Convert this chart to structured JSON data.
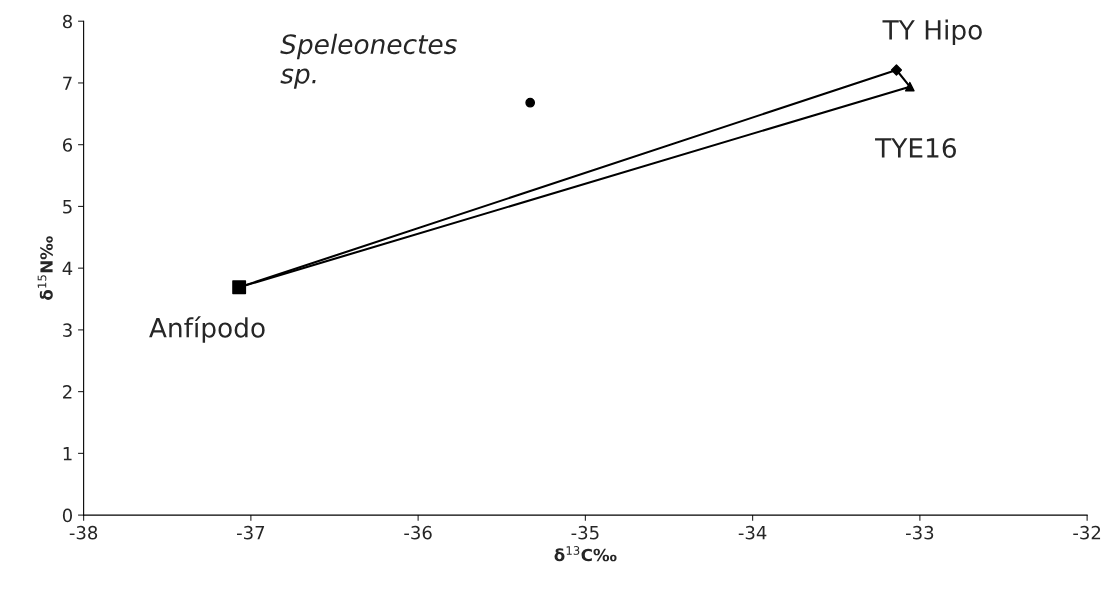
{
  "chart_data": {
    "type": "scatter",
    "xlabel": "δ$^{13}$C‰",
    "ylabel": "δ$^{15}$N‰",
    "xlim": [
      -38,
      -32
    ],
    "ylim": [
      0,
      8
    ],
    "xticks": [
      -38,
      -37,
      -36,
      -35,
      -34,
      -33,
      -32
    ],
    "yticks": [
      0,
      1,
      2,
      3,
      4,
      5,
      6,
      7,
      8
    ],
    "grid": false,
    "legend": false,
    "series": [
      {
        "type": "line",
        "color": "#000000",
        "marker": "none",
        "x": [
          -37.07,
          -33.14,
          -33.06
        ],
        "values": [
          3.69,
          7.21,
          6.94
        ]
      },
      {
        "type": "line",
        "color": "#000000",
        "marker": "none",
        "x": [
          -37.07,
          -33.06
        ],
        "values": [
          3.69,
          6.94
        ]
      },
      {
        "color": "#000000",
        "marker": "square",
        "x": [
          -37.07
        ],
        "values": [
          3.69
        ]
      },
      {
        "color": "#000000",
        "marker": "circle",
        "x": [
          -35.33
        ],
        "values": [
          6.68
        ]
      },
      {
        "color": "#000000",
        "marker": "diamond",
        "x": [
          -33.14
        ],
        "values": [
          7.21
        ]
      },
      {
        "color": "#000000",
        "marker": "triangle",
        "x": [
          -33.06
        ],
        "values": [
          6.94
        ]
      }
    ],
    "annotations": [
      {
        "text": "Anfípodo",
        "x": -37.07,
        "y": 3.69
      },
      {
        "text": "Speleonectes\nsp.",
        "x": -35.33,
        "y": 6.68
      },
      {
        "text": "TY Hipo",
        "x": -33.14,
        "y": 7.21
      },
      {
        "text": "TYE16",
        "x": -33.06,
        "y": 6.94
      }
    ]
  }
}
